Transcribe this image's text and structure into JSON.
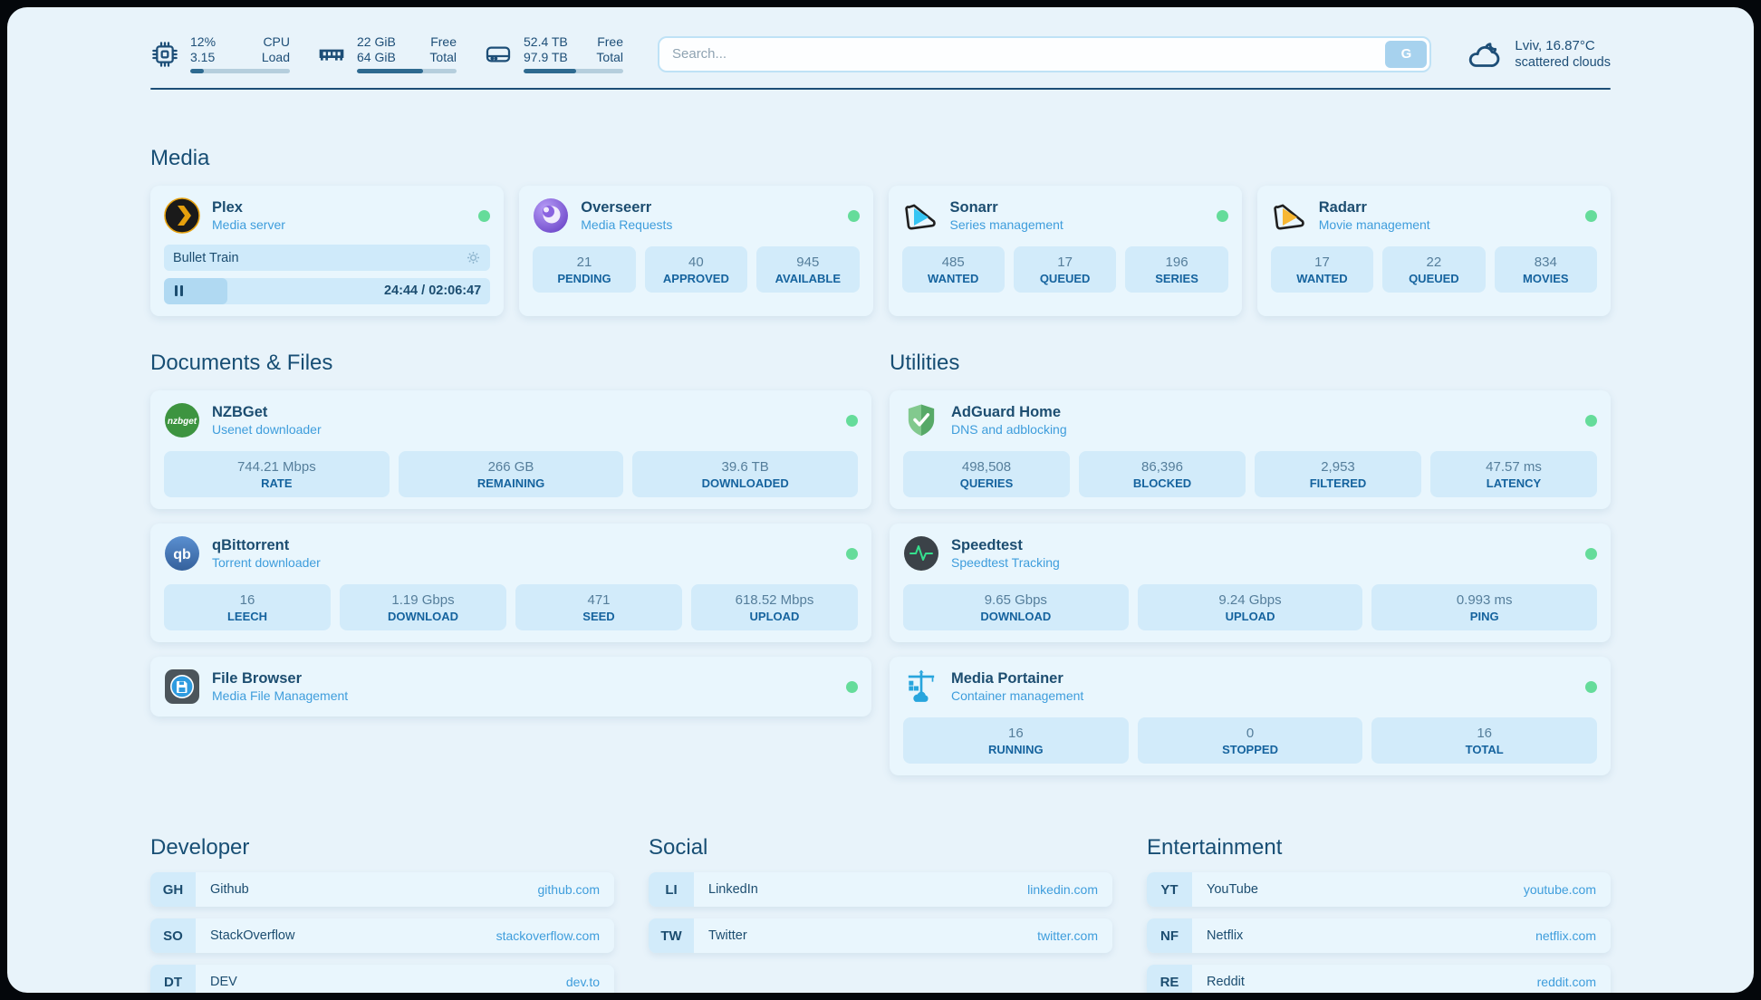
{
  "header": {
    "stats": [
      {
        "name": "cpu",
        "values": [
          "12%",
          "3.15"
        ],
        "labels": [
          "CPU",
          "Load"
        ],
        "progress": 14
      },
      {
        "name": "memory",
        "values": [
          "22 GiB",
          "64 GiB"
        ],
        "labels": [
          "Free",
          "Total"
        ],
        "progress": 66
      },
      {
        "name": "disk",
        "values": [
          "52.4 TB",
          "97.9 TB"
        ],
        "labels": [
          "Free",
          "Total"
        ],
        "progress": 53
      }
    ],
    "search": {
      "placeholder": "Search...",
      "button_label": "G"
    },
    "weather": {
      "location_temp": "Lviv, 16.87°C",
      "condition": "scattered clouds"
    }
  },
  "media": {
    "heading": "Media",
    "plex": {
      "title": "Plex",
      "subtitle": "Media server",
      "now_playing": "Bullet Train",
      "time": "24:44 / 02:06:47",
      "progress": 19.5
    },
    "overseerr": {
      "title": "Overseerr",
      "subtitle": "Media Requests",
      "stats": [
        {
          "value": "21",
          "label": "PENDING"
        },
        {
          "value": "40",
          "label": "APPROVED"
        },
        {
          "value": "945",
          "label": "AVAILABLE"
        }
      ]
    },
    "sonarr": {
      "title": "Sonarr",
      "subtitle": "Series management",
      "stats": [
        {
          "value": "485",
          "label": "WANTED"
        },
        {
          "value": "17",
          "label": "QUEUED"
        },
        {
          "value": "196",
          "label": "SERIES"
        }
      ]
    },
    "radarr": {
      "title": "Radarr",
      "subtitle": "Movie management",
      "stats": [
        {
          "value": "17",
          "label": "WANTED"
        },
        {
          "value": "22",
          "label": "QUEUED"
        },
        {
          "value": "834",
          "label": "MOVIES"
        }
      ]
    }
  },
  "documents": {
    "heading": "Documents & Files",
    "nzbget": {
      "title": "NZBGet",
      "subtitle": "Usenet downloader",
      "stats": [
        {
          "value": "744.21 Mbps",
          "label": "RATE"
        },
        {
          "value": "266 GB",
          "label": "REMAINING"
        },
        {
          "value": "39.6 TB",
          "label": "DOWNLOADED"
        }
      ]
    },
    "qbittorrent": {
      "title": "qBittorrent",
      "subtitle": "Torrent downloader",
      "stats": [
        {
          "value": "16",
          "label": "LEECH"
        },
        {
          "value": "1.19 Gbps",
          "label": "DOWNLOAD"
        },
        {
          "value": "471",
          "label": "SEED"
        },
        {
          "value": "618.52 Mbps",
          "label": "UPLOAD"
        }
      ]
    },
    "filebrowser": {
      "title": "File Browser",
      "subtitle": "Media File Management"
    }
  },
  "utilities": {
    "heading": "Utilities",
    "adguard": {
      "title": "AdGuard Home",
      "subtitle": "DNS and adblocking",
      "stats": [
        {
          "value": "498,508",
          "label": "QUERIES"
        },
        {
          "value": "86,396",
          "label": "BLOCKED"
        },
        {
          "value": "2,953",
          "label": "FILTERED"
        },
        {
          "value": "47.57 ms",
          "label": "LATENCY"
        }
      ]
    },
    "speedtest": {
      "title": "Speedtest",
      "subtitle": "Speedtest Tracking",
      "stats": [
        {
          "value": "9.65 Gbps",
          "label": "DOWNLOAD"
        },
        {
          "value": "9.24 Gbps",
          "label": "UPLOAD"
        },
        {
          "value": "0.993 ms",
          "label": "PING"
        }
      ]
    },
    "portainer": {
      "title": "Media Portainer",
      "subtitle": "Container management",
      "stats": [
        {
          "value": "16",
          "label": "RUNNING"
        },
        {
          "value": "0",
          "label": "STOPPED"
        },
        {
          "value": "16",
          "label": "TOTAL"
        }
      ]
    }
  },
  "bookmarks": {
    "developer": {
      "heading": "Developer",
      "links": [
        {
          "abbr": "GH",
          "name": "Github",
          "url": "github.com"
        },
        {
          "abbr": "SO",
          "name": "StackOverflow",
          "url": "stackoverflow.com"
        },
        {
          "abbr": "DT",
          "name": "DEV",
          "url": "dev.to"
        }
      ]
    },
    "social": {
      "heading": "Social",
      "links": [
        {
          "abbr": "LI",
          "name": "LinkedIn",
          "url": "linkedin.com"
        },
        {
          "abbr": "TW",
          "name": "Twitter",
          "url": "twitter.com"
        }
      ]
    },
    "entertainment": {
      "heading": "Entertainment",
      "links": [
        {
          "abbr": "YT",
          "name": "YouTube",
          "url": "youtube.com"
        },
        {
          "abbr": "NF",
          "name": "Netflix",
          "url": "netflix.com"
        },
        {
          "abbr": "RE",
          "name": "Reddit",
          "url": "reddit.com"
        }
      ]
    }
  },
  "colors": {
    "navy": "#1c4d70",
    "accent_blue": "#3e9ddc",
    "status_green": "#65dc9a",
    "tile_bg": "#d2ebfa"
  }
}
